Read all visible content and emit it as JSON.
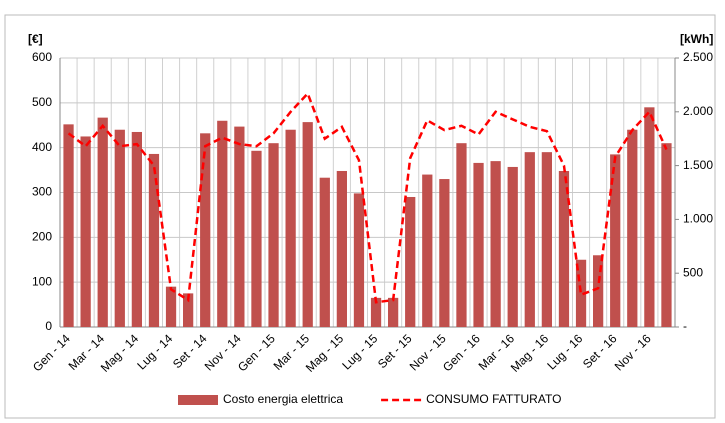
{
  "chart_data": {
    "type": "bar-line",
    "y_label": "[€]",
    "y2_label": "[kWh]",
    "categories": [
      "Gen - 14",
      null,
      "Mar - 14",
      null,
      "Mag - 14",
      null,
      "Lug - 14",
      null,
      "Set - 14",
      null,
      "Nov - 14",
      null,
      "Gen - 15",
      null,
      "Mar - 15",
      null,
      "Mag - 15",
      null,
      "Lug - 15",
      null,
      "Set - 15",
      null,
      "Nov - 15",
      null,
      "Gen - 16",
      null,
      "Mar - 16",
      null,
      "Mag - 16",
      null,
      "Lug - 16",
      null,
      "Set - 16",
      null,
      "Nov - 16",
      null
    ],
    "series": [
      {
        "name": "Costo energia elettrica",
        "type": "bar",
        "color": "#c0504d",
        "values": [
          452,
          425,
          467,
          440,
          435,
          386,
          90,
          75,
          432,
          460,
          447,
          393,
          410,
          440,
          457,
          333,
          348,
          298,
          65,
          65,
          290,
          340,
          330,
          410,
          366,
          370,
          357,
          390,
          390,
          348,
          150,
          160,
          385,
          440,
          490,
          410
        ]
      },
      {
        "name": "CONSUMO FATTURATO",
        "type": "line",
        "axis": "y2",
        "color": "#ff0000",
        "dashed": true,
        "values": [
          1800,
          1680,
          1870,
          1680,
          1700,
          1500,
          350,
          250,
          1680,
          1760,
          1700,
          1680,
          1800,
          2000,
          2170,
          1750,
          1860,
          1550,
          230,
          250,
          1570,
          1920,
          1830,
          1870,
          1790,
          2000,
          1930,
          1860,
          1820,
          1500,
          300,
          360,
          1580,
          1830,
          2000,
          1650
        ]
      }
    ],
    "ylim": [
      0,
      600
    ],
    "yticks": [
      0,
      100,
      200,
      300,
      400,
      500,
      600
    ],
    "y2lim": [
      0,
      2500
    ],
    "y2ticks": [
      {
        "value": 0,
        "label": "-"
      },
      500,
      {
        "value": 1000,
        "label": "1.000"
      },
      {
        "value": 1500,
        "label": "1.500"
      },
      {
        "value": 2000,
        "label": "2.000"
      },
      {
        "value": 2500,
        "label": "2.500"
      }
    ],
    "grid": true,
    "legend": "bottom"
  }
}
